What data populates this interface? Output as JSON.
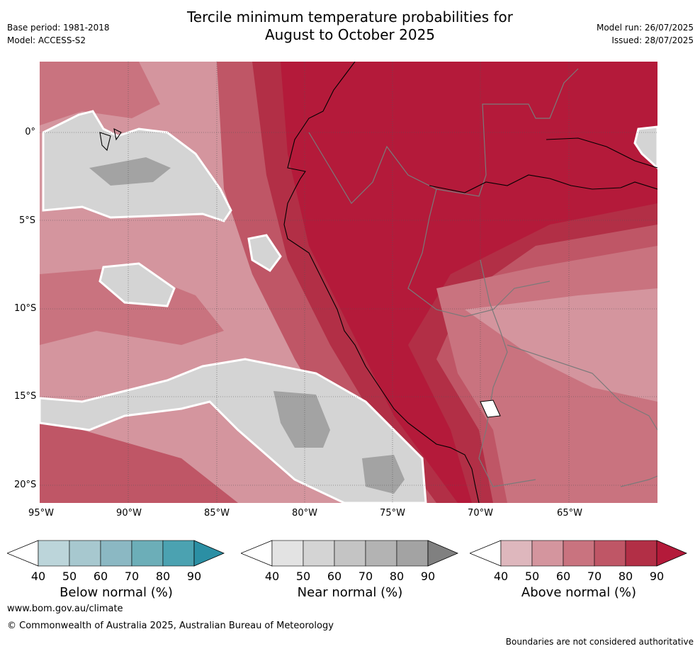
{
  "title_line1": "Tercile minimum temperature probabilities for",
  "title_line2": "August to October 2025",
  "base_period": "Base period: 1981-2018",
  "model": "Model: ACCESS-S2",
  "model_run": "Model run: 26/07/2025",
  "issued": "Issued: 28/07/2025",
  "lat_labels": [
    "0°",
    "5°S",
    "10°S",
    "15°S",
    "20°S"
  ],
  "lon_labels": [
    "95°W",
    "90°W",
    "85°W",
    "80°W",
    "75°W",
    "70°W",
    "65°W"
  ],
  "colorbars": [
    {
      "title": "Below normal (%)",
      "ticks": [
        "40",
        "50",
        "60",
        "70",
        "80",
        "90"
      ],
      "colors": [
        "#bcd5da",
        "#a7c8cf",
        "#8bb8c3",
        "#6caeb8",
        "#4ba2b1",
        "#2b8fa4"
      ]
    },
    {
      "title": "Near normal (%)",
      "ticks": [
        "40",
        "50",
        "60",
        "70",
        "80",
        "90"
      ],
      "colors": [
        "#e3e3e3",
        "#d4d4d4",
        "#c4c4c4",
        "#b3b3b3",
        "#a3a3a3",
        "#808080"
      ]
    },
    {
      "title": "Above normal (%)",
      "ticks": [
        "40",
        "50",
        "60",
        "70",
        "80",
        "90"
      ],
      "colors": [
        "#deb7bd",
        "#d4959e",
        "#c9737f",
        "#bf5666",
        "#b22f46",
        "#b41a3a"
      ]
    }
  ],
  "website": "www.bom.gov.au/climate",
  "copyright": "© Commonwealth of Australia 2025, Australian Bureau of Meteorology",
  "disclaimer": "Boundaries are not considered authoritative"
}
